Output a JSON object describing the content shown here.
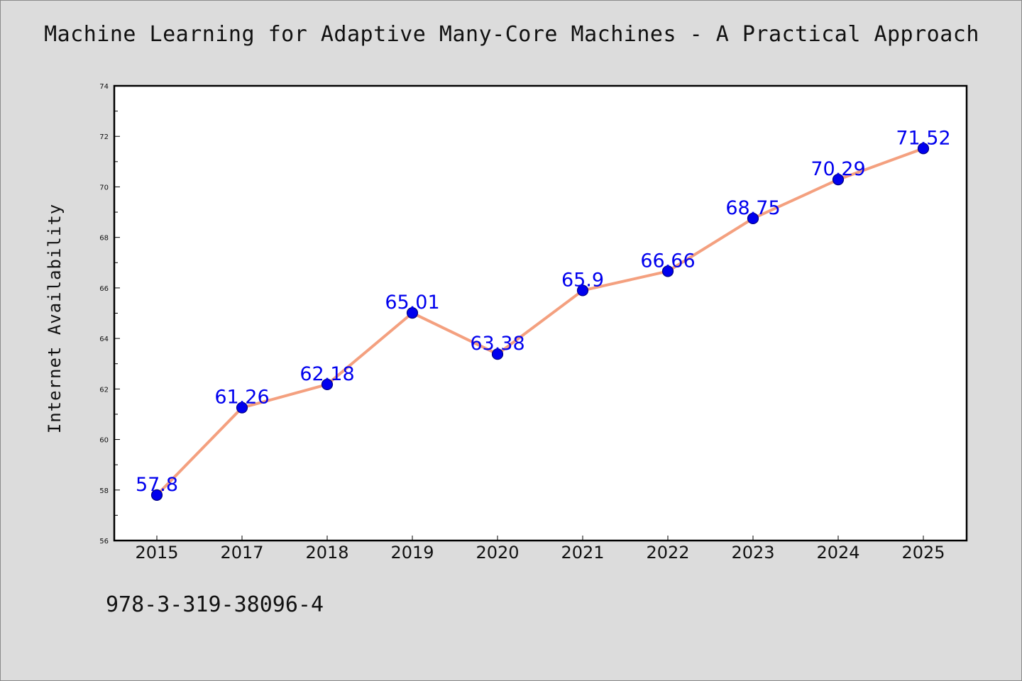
{
  "title": "Machine Learning for Adaptive Many-Core Machines - A Practical Approach",
  "isbn": "978-3-319-38096-4",
  "chart_data": {
    "type": "line",
    "title": "Machine Learning for Adaptive Many-Core Machines - A Practical Approach",
    "xlabel": "",
    "ylabel": "Internet Availability",
    "categories": [
      "2015",
      "2017",
      "2018",
      "2019",
      "2020",
      "2021",
      "2022",
      "2023",
      "2024",
      "2025"
    ],
    "series": [
      {
        "values": [
          57.8,
          61.26,
          62.18,
          65.01,
          63.38,
          65.9,
          66.66,
          68.75,
          70.29,
          71.52
        ],
        "labels": [
          "57.8",
          "61.26",
          "62.18",
          "65.01",
          "63.38",
          "65.9",
          "66.66",
          "68.75",
          "70.29",
          "71.52"
        ]
      }
    ],
    "ylim": [
      56,
      74
    ],
    "yticks": [
      56,
      58,
      60,
      62,
      64,
      66,
      68,
      70,
      72,
      74
    ],
    "grid": false,
    "legend": "none",
    "colors": {
      "line": "#f4a07f",
      "marker": "#0000ee",
      "marker_edge": "#000080",
      "data_label": "#0000ee",
      "background": "#dcdcdc",
      "plot_background": "#ffffff"
    }
  }
}
